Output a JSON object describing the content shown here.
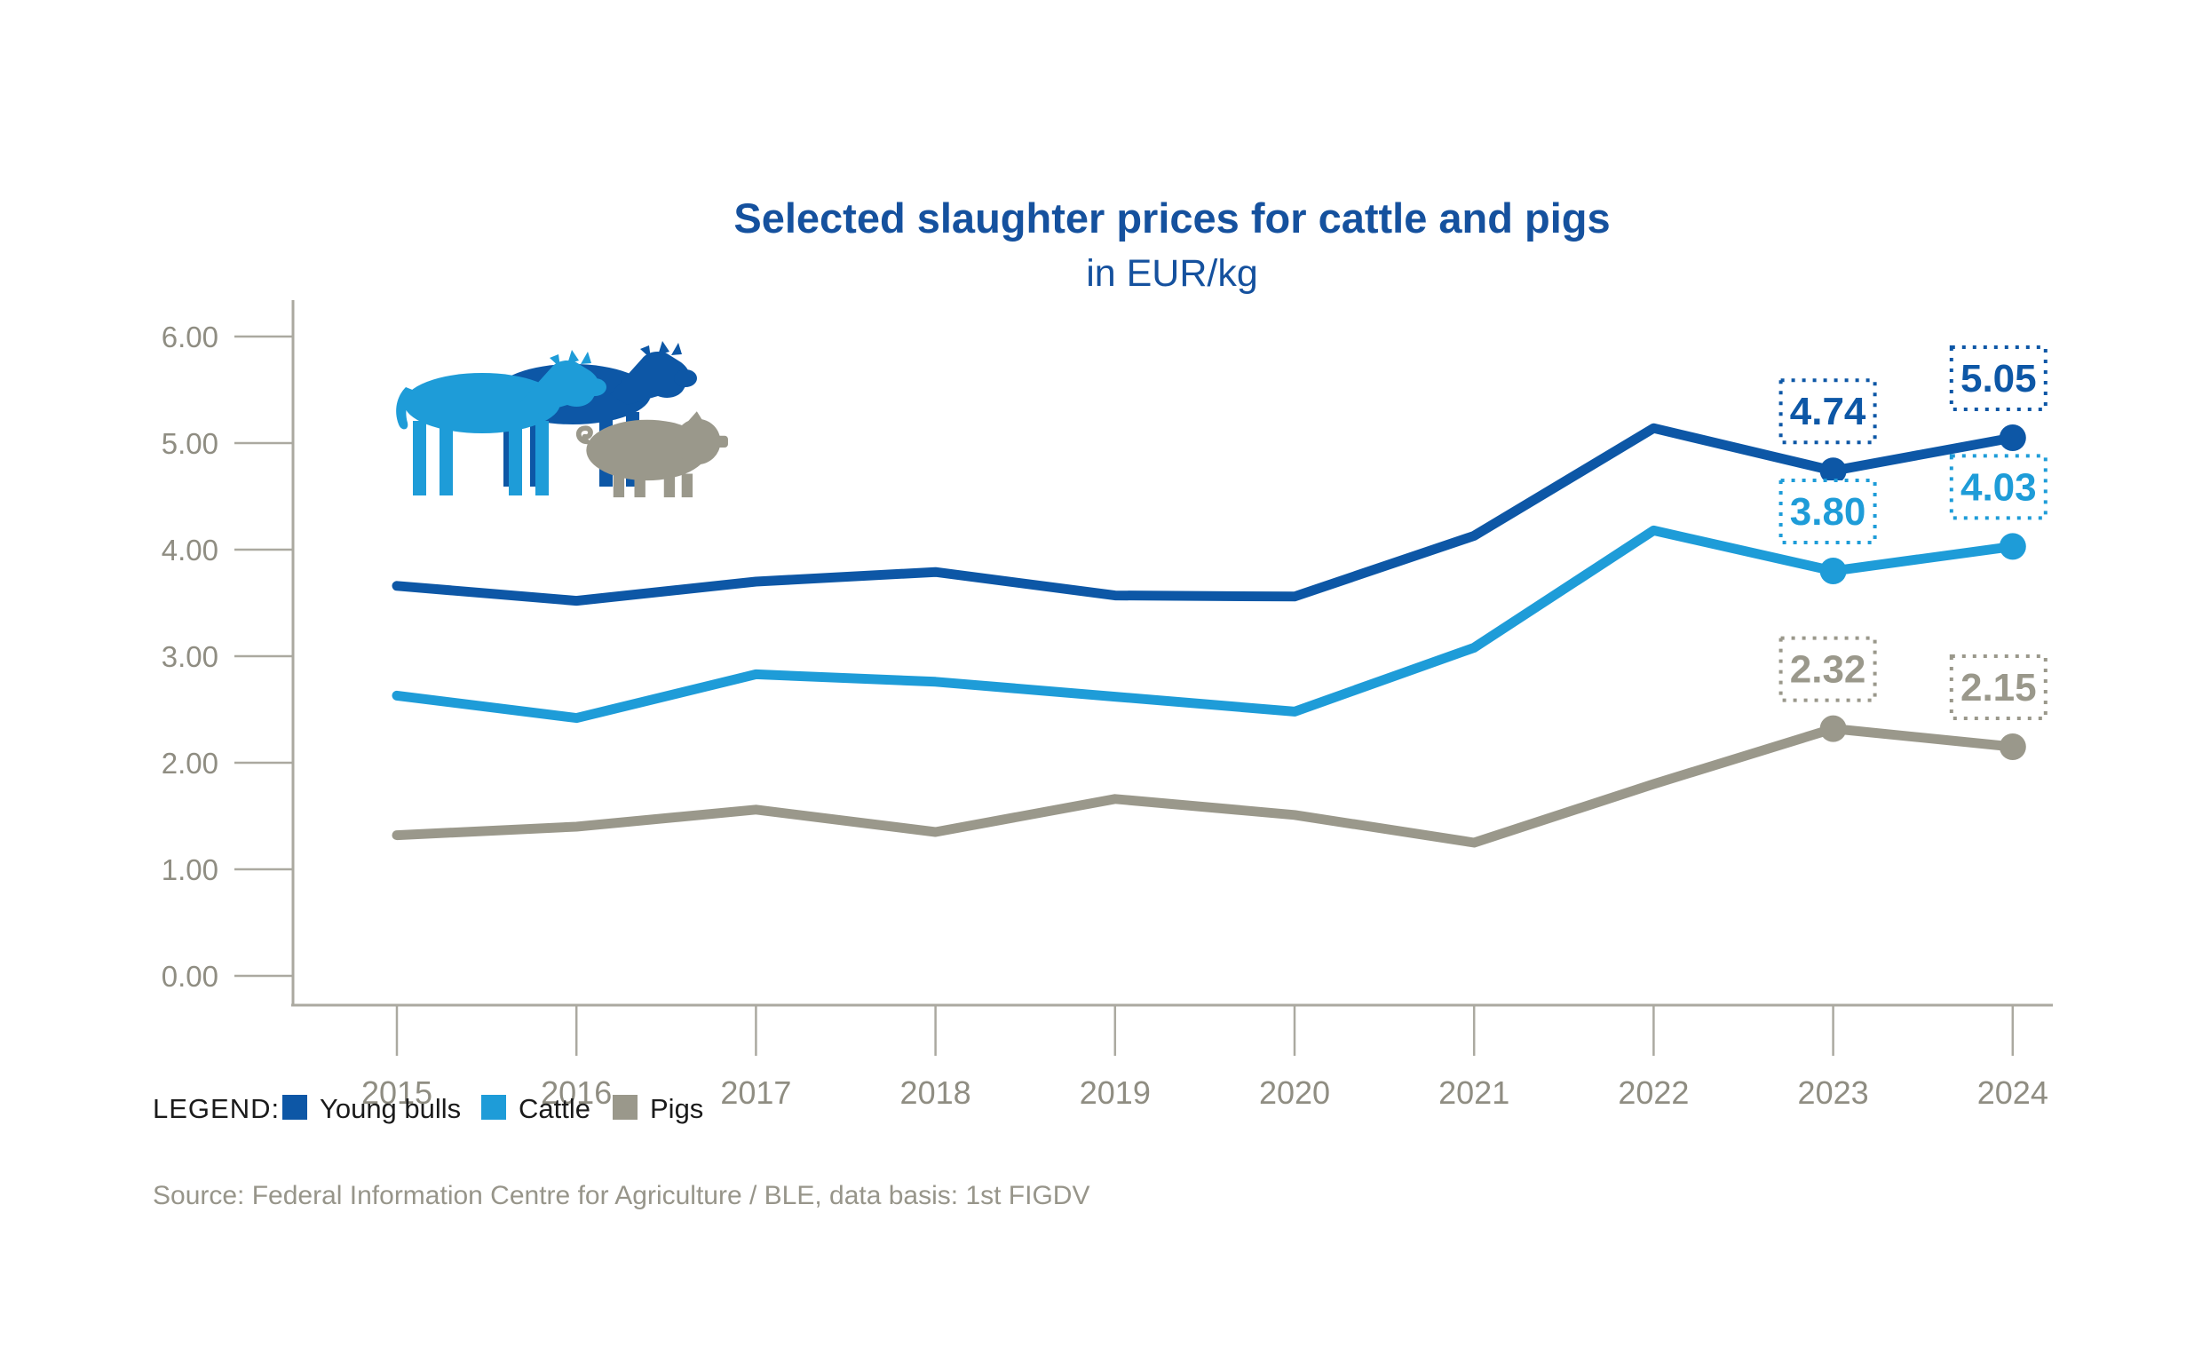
{
  "title": "Selected slaughter prices for cattle and pigs",
  "subtitle": "in EUR/kg",
  "source": "Source: Federal Information Centre for Agriculture / BLE, data basis: 1st FIGDV",
  "legend": {
    "label": "LEGEND:",
    "items": [
      {
        "label": "Young bulls",
        "color": "#0D57A6"
      },
      {
        "label": "Cattle",
        "color": "#1E9CD8"
      },
      {
        "label": "Pigs",
        "color": "#9A988B"
      }
    ]
  },
  "colors": {
    "title": "#15519E",
    "young_bulls": "#0D57A6",
    "cattle": "#1E9CD8",
    "pigs": "#9A988B",
    "axis": "#ABA9A0",
    "tick_label": "#8F8D82",
    "legend_text": "#1A1A1A",
    "source_text": "#97958A",
    "background": "#FFFFFF",
    "label_box_fill": "#FFFFFF"
  },
  "chart_data": {
    "type": "line",
    "title": "Selected slaughter prices for cattle and pigs",
    "subtitle": "in EUR/kg",
    "xlabel": "",
    "ylabel": "EUR/kg",
    "x": [
      2015,
      2016,
      2017,
      2018,
      2019,
      2020,
      2021,
      2022,
      2023,
      2024
    ],
    "series": [
      {
        "name": "Young bulls",
        "color": "#0D57A6",
        "values": [
          3.66,
          3.52,
          3.7,
          3.79,
          3.57,
          3.56,
          4.13,
          5.14,
          4.74,
          5.05
        ],
        "point_labels": [
          {
            "x": 2023,
            "label": "4.74"
          },
          {
            "x": 2024,
            "label": "5.05"
          }
        ]
      },
      {
        "name": "Cattle",
        "color": "#1E9CD8",
        "values": [
          2.63,
          2.42,
          2.83,
          2.76,
          2.62,
          2.48,
          3.08,
          4.18,
          3.8,
          4.03
        ],
        "point_labels": [
          {
            "x": 2023,
            "label": "3.80"
          },
          {
            "x": 2024,
            "label": "4.03"
          }
        ]
      },
      {
        "name": "Pigs",
        "color": "#9A988B",
        "values": [
          1.32,
          1.4,
          1.56,
          1.35,
          1.66,
          1.51,
          1.25,
          1.8,
          2.32,
          2.15
        ],
        "point_labels": [
          {
            "x": 2023,
            "label": "2.32"
          },
          {
            "x": 2024,
            "label": "2.15"
          }
        ]
      }
    ],
    "marker_years": [
      2023,
      2024
    ],
    "ylim": [
      0,
      6
    ],
    "yticks": [
      0,
      1,
      2,
      3,
      4,
      5,
      6
    ],
    "ytick_decimals": 2,
    "grid": false,
    "legend_position": "bottom"
  }
}
